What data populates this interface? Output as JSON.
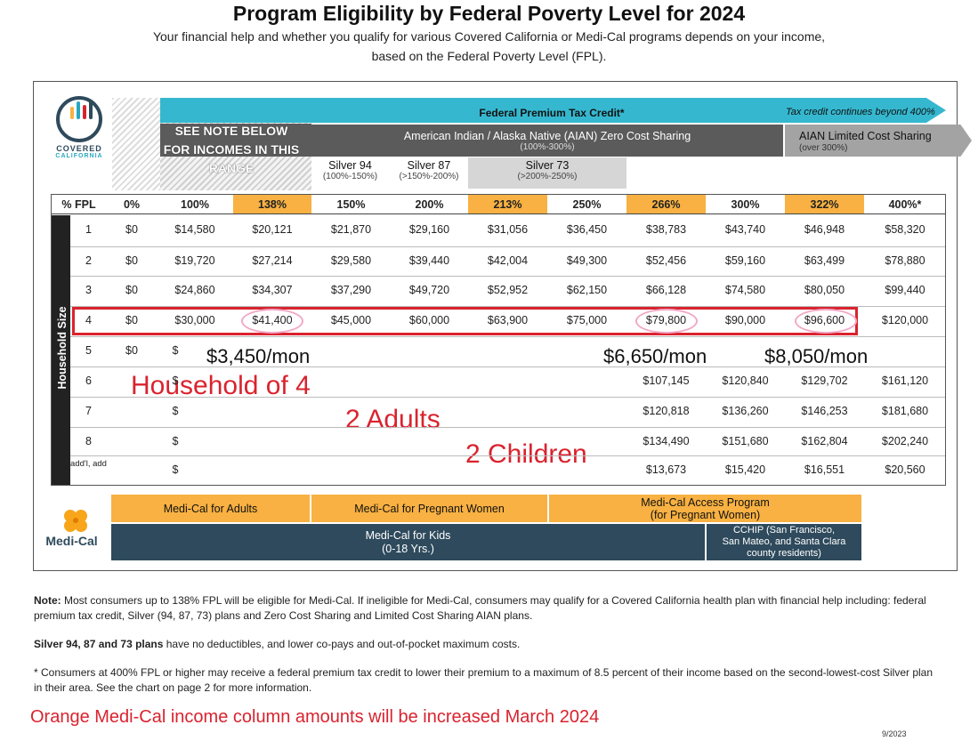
{
  "title": "Program Eligibility by Federal Poverty Level for 2024",
  "subtitle_line1": "Your financial help and whether you qualify for various Covered California or Medi-Cal programs depends on your income,",
  "subtitle_line2": "based on the Federal Poverty Level (FPL).",
  "logo": {
    "line1": "COVERED",
    "line2": "CALIFORNIA"
  },
  "bands": {
    "ptc": "Federal Premium Tax Credit*",
    "ptc_note": "Tax credit continues beyond 400%",
    "aian": "American Indian / Alaska Native (AIAN) Zero Cost Sharing",
    "aian_sub": "(100%-300%)",
    "aian_limited": "AIAN Limited Cost Sharing",
    "aian_limited_sub": "(over 300%)",
    "see_note": "SEE NOTE BELOW FOR INCOMES IN THIS RANGE",
    "silver94": "Silver 94",
    "silver94_sub": "(100%-150%)",
    "silver87": "Silver 87",
    "silver87_sub": "(>150%-200%)",
    "silver73": "Silver 73",
    "silver73_sub": "(>200%-250%)"
  },
  "table": {
    "headers": [
      "% FPL",
      "0%",
      "100%",
      "138%",
      "150%",
      "200%",
      "213%",
      "250%",
      "266%",
      "300%",
      "322%",
      "400%*"
    ],
    "highlighted": [
      3,
      6,
      8,
      10
    ],
    "side_label": "Household Size",
    "rows": [
      [
        "1",
        "$0",
        "$14,580",
        "$20,121",
        "$21,870",
        "$29,160",
        "$31,056",
        "$36,450",
        "$38,783",
        "$43,740",
        "$46,948",
        "$58,320"
      ],
      [
        "2",
        "$0",
        "$19,720",
        "$27,214",
        "$29,580",
        "$39,440",
        "$42,004",
        "$49,300",
        "$52,456",
        "$59,160",
        "$63,499",
        "$78,880"
      ],
      [
        "3",
        "$0",
        "$24,860",
        "$34,307",
        "$37,290",
        "$49,720",
        "$52,952",
        "$62,150",
        "$66,128",
        "$74,580",
        "$80,050",
        "$99,440"
      ],
      [
        "4",
        "$0",
        "$30,000",
        "$41,400",
        "$45,000",
        "$60,000",
        "$63,900",
        "$75,000",
        "$79,800",
        "$90,000",
        "$96,600",
        "$120,000"
      ],
      [
        "5",
        "$0",
        "$",
        "",
        "",
        "",
        "",
        "",
        "",
        "",
        "",
        ""
      ],
      [
        "6",
        "",
        "$",
        "",
        "",
        "",
        "",
        "",
        "$107,145",
        "$120,840",
        "$129,702",
        "$161,120"
      ],
      [
        "7",
        "",
        "$",
        "",
        "",
        "",
        "",
        "",
        "$120,818",
        "$136,260",
        "$146,253",
        "$181,680"
      ],
      [
        "8",
        "",
        "$",
        "",
        "",
        "",
        "",
        "",
        "$134,490",
        "$151,680",
        "$162,804",
        "$202,240"
      ],
      [
        "add'l, add",
        "",
        "$",
        "",
        "",
        "",
        "",
        "",
        "$13,673",
        "$15,420",
        "$16,551",
        "$20,560"
      ]
    ]
  },
  "annotations": {
    "mon1": "$3,450/mon",
    "mon2": "$6,650/mon",
    "mon3": "$8,050/mon",
    "household": "Household of 4",
    "adults": "2 Adults",
    "children": "2 Children"
  },
  "medical": {
    "logo": "Medi-Cal",
    "adults": "Medi-Cal for Adults",
    "pregnant": "Medi-Cal for Pregnant Women",
    "access_line1": "Medi-Cal Access Program",
    "access_line2": "(for Pregnant Women)",
    "kids_line1": "Medi-Cal for Kids",
    "kids_line2": "(0-18 Yrs.)",
    "cchip_line1": "CCHIP (San Francisco,",
    "cchip_line2": "San Mateo, and Santa Clara",
    "cchip_line3": "county residents)"
  },
  "notes": {
    "note_bold": "Note:",
    "note_text": " Most consumers up to 138% FPL will be eligible for Medi-Cal. If ineligible for Medi-Cal, consumers may qualify for a Covered California health plan with financial help including: federal premium tax credit, Silver (94, 87, 73) plans and Zero Cost Sharing and Limited Cost Sharing AIAN plans.",
    "silver_bold": "Silver 94, 87 and 73 plans",
    "silver_text": " have no deductibles, and lower co-pays and out-of-pocket maximum costs.",
    "star": "* Consumers at 400% FPL or higher may receive a federal premium tax credit to lower their premium to a maximum of 8.5 percent of their income based on the second-lowest-cost Silver plan in their area. See the chart on page 2 for more information.",
    "march": "Orange Medi-Cal income column amounts will be increased March 2024",
    "date": "9/2023"
  },
  "colors": {
    "orange": "#f8b142",
    "teal": "#35b8cf",
    "navy": "#2e4a5c",
    "red": "#d9232e"
  }
}
